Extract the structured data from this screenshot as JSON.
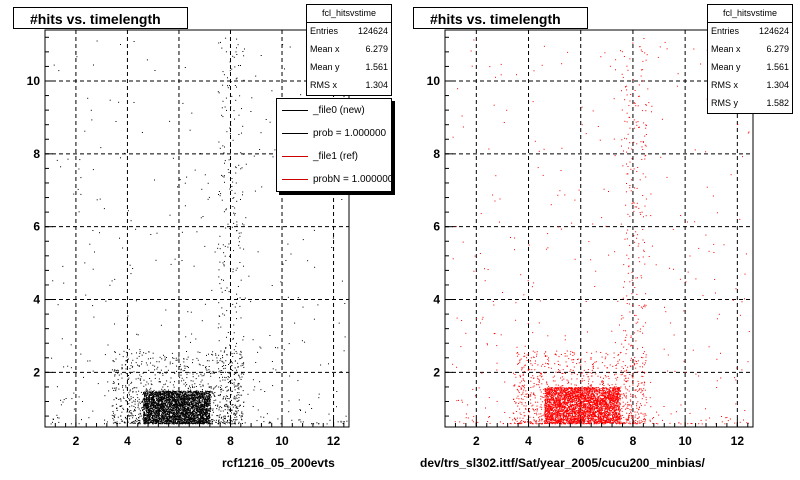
{
  "chart_data": [
    {
      "type": "scatter",
      "title": "#hits vs. timelength",
      "marker_color": "#000000",
      "xlim": [
        0.8,
        12.6
      ],
      "ylim": [
        0.5,
        11.4
      ],
      "xticks": [
        2,
        4,
        6,
        8,
        10,
        12
      ],
      "yticks": [
        2,
        4,
        6,
        8,
        10
      ],
      "grid": true,
      "x_footer": "rcf1216_05_200evts",
      "stats": {
        "name": "fcl_hitsvstime",
        "rows": [
          {
            "label": "Entries",
            "value": "124624"
          },
          {
            "label": "Mean x",
            "value": "6.279"
          },
          {
            "label": "Mean y",
            "value": "1.561"
          },
          {
            "label": "RMS x",
            "value": "1.304"
          }
        ]
      },
      "legend": {
        "placement": "top-right",
        "entries": [
          {
            "label": "_file0 (new)",
            "color": "#000000"
          },
          {
            "label": "prob = 1.000000",
            "color": "#000000"
          },
          {
            "label": "_file1 (ref)",
            "color": "#cc0000"
          },
          {
            "label": "probN = 1.000000",
            "color": "#cc0000"
          }
        ]
      },
      "density": {
        "dense_band": {
          "x": [
            4.6,
            7.2
          ],
          "y": [
            0.6,
            1.5
          ]
        },
        "mid_band": {
          "x": [
            3.4,
            8.5
          ],
          "y": [
            0.6,
            2.6
          ]
        },
        "vertical_streak": {
          "x": [
            7.5,
            8.5
          ],
          "y": [
            0.6,
            11.2
          ]
        },
        "sparse": {
          "x": [
            1.0,
            12.5
          ],
          "y": [
            0.6,
            11.2
          ]
        }
      }
    },
    {
      "type": "scatter",
      "title": "#hits vs. timelength",
      "marker_color": "#ff0000",
      "xlim": [
        0.8,
        12.6
      ],
      "ylim": [
        0.5,
        11.4
      ],
      "xticks": [
        2,
        4,
        6,
        8,
        10,
        12
      ],
      "yticks": [
        2,
        4,
        6,
        8,
        10
      ],
      "grid": true,
      "x_footer": "dev/trs_sl302.ittf/Sat/year_2005/cucu200_minbias/",
      "stats": {
        "name": "fcl_hitsvstime",
        "rows": [
          {
            "label": "Entries",
            "value": "124624"
          },
          {
            "label": "Mean x",
            "value": "6.279"
          },
          {
            "label": "Mean y",
            "value": "1.561"
          },
          {
            "label": "RMS x",
            "value": "1.304"
          },
          {
            "label": "RMS y",
            "value": "1.582"
          }
        ]
      },
      "density": {
        "dense_band": {
          "x": [
            4.6,
            7.5
          ],
          "y": [
            0.6,
            1.6
          ]
        },
        "mid_band": {
          "x": [
            3.4,
            8.5
          ],
          "y": [
            0.6,
            2.6
          ]
        },
        "vertical_streak": {
          "x": [
            7.5,
            8.5
          ],
          "y": [
            0.6,
            11.2
          ]
        },
        "sparse": {
          "x": [
            1.0,
            12.5
          ],
          "y": [
            0.6,
            11.2
          ]
        }
      }
    }
  ]
}
